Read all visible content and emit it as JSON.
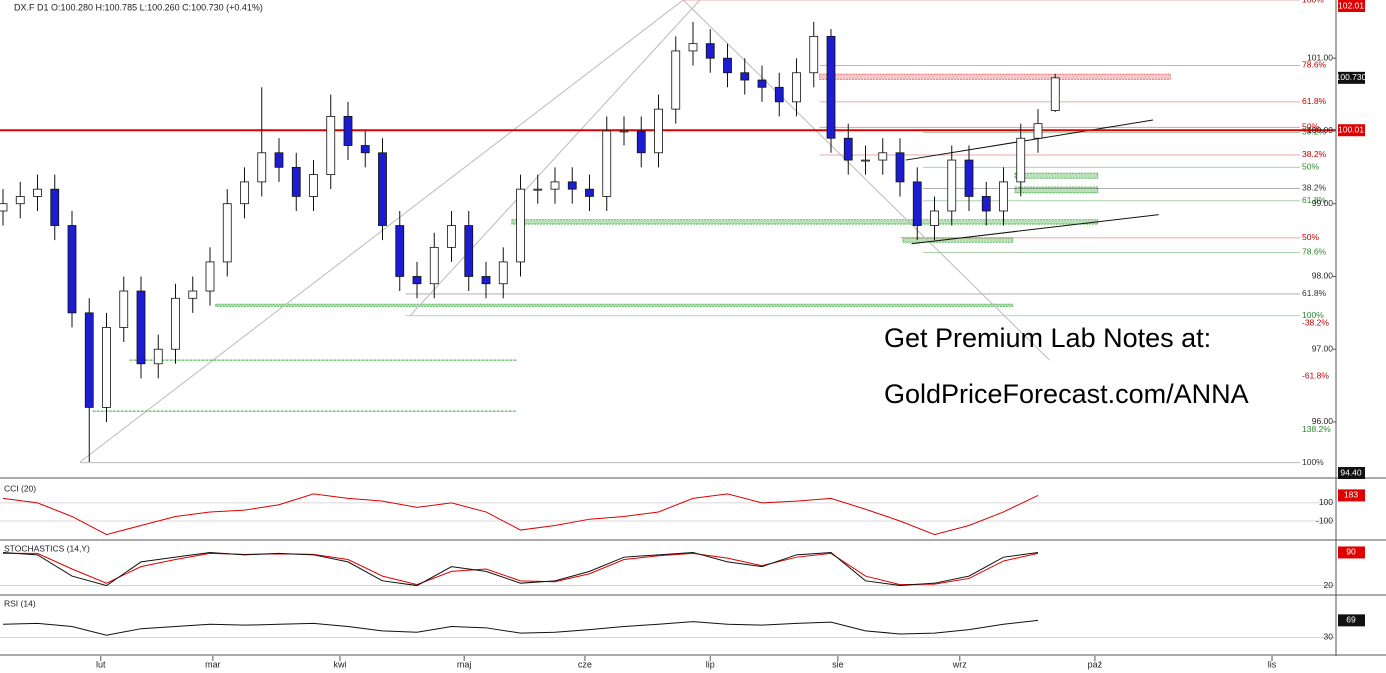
{
  "chart_data": [
    {
      "type": "candlestick",
      "header": "DX.F  D1  O:100.280  H:100.785  L:100.260  C:100.730  (+0.41%)",
      "x": [
        0,
        3,
        6,
        9,
        12,
        15,
        18,
        21,
        24,
        27,
        30,
        33,
        36,
        39,
        42,
        45,
        48,
        51,
        54,
        57,
        60,
        63,
        66,
        69,
        72,
        75,
        78,
        81,
        84,
        87,
        90,
        93,
        96,
        99,
        102,
        105,
        108,
        111,
        114,
        117,
        120,
        123,
        126,
        129,
        132,
        135,
        138,
        141,
        144,
        147,
        150,
        153,
        156,
        159,
        162,
        165,
        168,
        171,
        174,
        177,
        180,
        183
      ],
      "open": [
        98.9,
        99.0,
        99.1,
        99.2,
        98.7,
        97.5,
        96.2,
        97.3,
        97.8,
        96.8,
        97.0,
        97.7,
        97.8,
        98.2,
        99.0,
        99.3,
        99.7,
        99.5,
        99.1,
        99.4,
        100.2,
        99.8,
        99.7,
        98.7,
        98.0,
        97.9,
        98.4,
        98.7,
        98.0,
        97.9,
        98.2,
        99.2,
        99.2,
        99.3,
        99.2,
        99.1,
        100.0,
        100.0,
        99.7,
        100.3,
        101.1,
        101.2,
        101.0,
        100.8,
        100.7,
        100.6,
        100.4,
        100.8,
        101.3,
        99.9,
        99.6,
        99.6,
        99.7,
        99.3,
        98.7,
        98.9,
        99.6,
        99.1,
        98.9,
        99.3,
        99.9,
        100.28
      ],
      "high": [
        99.2,
        99.3,
        99.4,
        99.4,
        98.9,
        97.7,
        97.5,
        98.0,
        98.0,
        97.2,
        97.9,
        98.0,
        98.4,
        99.2,
        99.5,
        100.6,
        99.9,
        99.7,
        99.6,
        100.5,
        100.4,
        100.0,
        99.9,
        98.9,
        98.2,
        98.6,
        98.9,
        98.9,
        98.2,
        98.4,
        99.4,
        99.4,
        99.5,
        99.5,
        99.4,
        100.2,
        100.2,
        100.2,
        100.5,
        101.3,
        101.5,
        101.4,
        101.2,
        101.0,
        100.9,
        100.8,
        101.0,
        101.5,
        101.4,
        100.1,
        99.8,
        99.9,
        99.9,
        99.5,
        99.1,
        99.8,
        99.8,
        99.3,
        99.5,
        100.1,
        100.3,
        100.785
      ],
      "low": [
        98.7,
        98.8,
        98.9,
        98.5,
        97.3,
        95.45,
        96.0,
        97.1,
        96.6,
        96.6,
        96.8,
        97.5,
        97.6,
        98.0,
        98.8,
        99.1,
        99.3,
        98.9,
        98.9,
        99.2,
        99.6,
        99.5,
        98.5,
        97.8,
        97.7,
        97.7,
        98.2,
        97.8,
        97.7,
        97.7,
        98.0,
        99.0,
        99.0,
        99.0,
        98.9,
        98.9,
        99.8,
        99.5,
        99.5,
        100.1,
        100.9,
        100.8,
        100.6,
        100.5,
        100.4,
        100.2,
        100.2,
        100.6,
        99.7,
        99.4,
        99.4,
        99.4,
        99.1,
        98.5,
        98.5,
        98.7,
        98.9,
        98.7,
        98.7,
        99.1,
        99.7,
        100.26
      ],
      "close": [
        99.0,
        99.1,
        99.2,
        98.7,
        97.5,
        96.2,
        97.3,
        97.8,
        96.8,
        97.0,
        97.7,
        97.8,
        98.2,
        99.0,
        99.3,
        99.7,
        99.5,
        99.1,
        99.4,
        100.2,
        99.8,
        99.7,
        98.7,
        98.0,
        97.9,
        98.4,
        98.7,
        98.0,
        97.9,
        98.2,
        99.2,
        99.2,
        99.3,
        99.2,
        99.1,
        100.0,
        100.0,
        99.7,
        100.3,
        101.1,
        101.2,
        101.0,
        100.8,
        100.7,
        100.6,
        100.4,
        100.8,
        101.3,
        99.9,
        99.6,
        99.6,
        99.7,
        99.3,
        98.7,
        98.9,
        99.6,
        99.1,
        98.9,
        99.3,
        99.9,
        100.1,
        100.73
      ],
      "close_label": "100.730",
      "colors": {
        "up": "#ffffff",
        "down": "#1c1cd0",
        "edge": "#111111"
      },
      "xlim": [
        0,
        232
      ],
      "xticks": [
        {
          "value": 17,
          "label": "lut"
        },
        {
          "value": 36.5,
          "label": "mar"
        },
        {
          "value": 58.6,
          "label": "kwi"
        },
        {
          "value": 80.2,
          "label": "maj"
        },
        {
          "value": 101.2,
          "label": "cze"
        },
        {
          "value": 123,
          "label": "lip"
        },
        {
          "value": 145.2,
          "label": "sie"
        },
        {
          "value": 166.4,
          "label": "wrz"
        },
        {
          "value": 189.9,
          "label": "paź"
        },
        {
          "value": 220.7,
          "label": "lis"
        }
      ],
      "ylim": [
        95.23,
        101.8
      ],
      "yticks": [
        {
          "value": 96,
          "label": "96.00"
        },
        {
          "value": 97,
          "label": "97.00"
        },
        {
          "value": 98,
          "label": "98.00"
        },
        {
          "value": 99,
          "label": "99.00"
        },
        {
          "value": 100,
          "label": "100.00"
        },
        {
          "value": 101,
          "label": "101.00"
        }
      ],
      "ref_line": {
        "value": 100.01,
        "color": "#e00000"
      },
      "price_tags": [
        {
          "value": 102.01,
          "color": "#e00000"
        },
        {
          "value": 94.4,
          "label": "94.40",
          "color": "#111111"
        }
      ],
      "fib_levels": [
        {
          "label": "100%",
          "value": 101.8,
          "color": "#c00000",
          "start": 118.3
        },
        {
          "label": "78.6%",
          "value": 100.9,
          "color": "#c00000",
          "start": 142
        },
        {
          "label": "61.8%",
          "value": 100.4,
          "color": "#c00000",
          "start": 142
        },
        {
          "label": "50%",
          "value": 100.05,
          "color": "#c00000",
          "start": 142
        },
        {
          "label": "38.2%",
          "value": 99.98,
          "color": "#2a8a2a",
          "start": 160
        },
        {
          "label": "38.2%",
          "value": 99.67,
          "color": "#c00000",
          "start": 142
        },
        {
          "label": "50%",
          "value": 99.5,
          "color": "#2a8a2a",
          "start": 160
        },
        {
          "label": "38.2%",
          "value": 99.21,
          "color": "#333333",
          "start": 160
        },
        {
          "label": "61.8%",
          "value": 99.04,
          "color": "#2a8a2a",
          "start": 160
        },
        {
          "label": "50%",
          "value": 98.53,
          "color": "#c00000",
          "start": 156
        },
        {
          "label": "78.6%",
          "value": 98.33,
          "color": "#2a8a2a",
          "start": 160
        },
        {
          "label": "61.8%",
          "value": 97.76,
          "color": "#333333",
          "start": 70
        },
        {
          "label": "100%",
          "value": 97.46,
          "color": "#2a8a2a",
          "start": 70
        },
        {
          "label": "-38.2%",
          "value": 97.36,
          "color": "#c00000"
        },
        {
          "label": "-61.8%",
          "value": 96.63,
          "color": "#c00000"
        },
        {
          "label": "138.2%",
          "value": 95.89,
          "color": "#2a8a2a"
        },
        {
          "label": "100%",
          "value": 95.44,
          "color": "#333333",
          "start": 13.4
        }
      ],
      "zones": [
        {
          "x": [
            88.5,
            190.4
          ],
          "y": [
            98.72,
            98.78
          ],
          "color": "#3aa83a"
        },
        {
          "x": [
            176,
            190.4
          ],
          "y": [
            99.35,
            99.42
          ],
          "color": "#3aa83a"
        },
        {
          "x": [
            176,
            190.4
          ],
          "y": [
            99.15,
            99.23
          ],
          "color": "#3aa83a"
        },
        {
          "x": [
            156.5,
            175.6
          ],
          "y": [
            98.47,
            98.53
          ],
          "color": "#3aa83a"
        },
        {
          "x": [
            37,
            175.6
          ],
          "y": [
            97.59,
            97.62
          ],
          "color": "#3aa83a"
        },
        {
          "x": [
            142,
            203
          ],
          "y": [
            100.71,
            100.78
          ],
          "color": "#e06060"
        }
      ],
      "lines": [
        {
          "x": [
            13.4,
            118.3
          ],
          "y": [
            95.45,
            101.8
          ],
          "color": "#bbbbbb"
        },
        {
          "x": [
            70.8,
            121.2
          ],
          "y": [
            97.46,
            101.8
          ],
          "color": "#bbbbbb"
        },
        {
          "x": [
            118.3,
            182
          ],
          "y": [
            101.8,
            96.85
          ],
          "color": "#bbbbbb"
        },
        {
          "x": [
            157,
            200
          ],
          "y": [
            99.6,
            100.15
          ],
          "color": "#111111"
        },
        {
          "x": [
            158,
            201
          ],
          "y": [
            98.45,
            98.85
          ],
          "color": "#111111"
        },
        {
          "x": [
            22,
            89.4
          ],
          "y": [
            96.85,
            96.85
          ],
          "color": "#3aa83a"
        },
        {
          "x": [
            15.6,
            89.4
          ],
          "y": [
            96.15,
            96.15
          ],
          "color": "#3aa83a"
        }
      ],
      "annotations": [
        "Get Premium Lab Notes at:",
        "GoldPriceForecast.com/ANNA"
      ]
    },
    {
      "type": "line",
      "title": "CCI (20)",
      "tag_color": "#e00000",
      "x": [
        0,
        6,
        12,
        18,
        24,
        30,
        36,
        42,
        48,
        54,
        60,
        66,
        72,
        78,
        84,
        90,
        96,
        102,
        108,
        114,
        120,
        126,
        132,
        138,
        144,
        150,
        156,
        162,
        168,
        174,
        180
      ],
      "series": [
        {
          "color": "#e00000",
          "values": [
            150,
            100,
            -50,
            -250,
            -150,
            -50,
            0,
            20,
            80,
            200,
            150,
            120,
            50,
            100,
            0,
            -200,
            -150,
            -80,
            -50,
            0,
            150,
            200,
            100,
            120,
            150,
            30,
            -100,
            -250,
            -150,
            0,
            183
          ]
        }
      ],
      "ylim": [
        -310,
        320
      ],
      "yticks": [
        100,
        -100
      ]
    },
    {
      "type": "line",
      "title": "STOCHASTICS (14,Y)",
      "tag_color": "#e00000",
      "x": [
        0,
        6,
        12,
        18,
        24,
        30,
        36,
        42,
        48,
        54,
        60,
        66,
        72,
        78,
        84,
        90,
        96,
        102,
        108,
        114,
        120,
        126,
        132,
        138,
        144,
        150,
        156,
        162,
        168,
        174,
        180
      ],
      "series": [
        {
          "color": "#e00000",
          "values": [
            88,
            88,
            55,
            25,
            60,
            75,
            88,
            86,
            87,
            86,
            75,
            40,
            22,
            50,
            55,
            30,
            28,
            45,
            75,
            83,
            88,
            78,
            62,
            80,
            88,
            40,
            22,
            23,
            35,
            72,
            88
          ]
        },
        {
          "color": "#111111",
          "values": [
            90,
            85,
            40,
            20,
            70,
            80,
            90,
            85,
            88,
            85,
            70,
            30,
            20,
            60,
            50,
            25,
            30,
            50,
            80,
            85,
            90,
            70,
            60,
            85,
            90,
            30,
            20,
            25,
            40,
            80,
            90
          ]
        }
      ],
      "ylim": [
        0,
        110
      ],
      "yticks": [
        20
      ]
    },
    {
      "type": "line",
      "title": "RSI (14)",
      "tag_color": "#111111",
      "x": [
        0,
        6,
        12,
        18,
        24,
        30,
        36,
        42,
        48,
        54,
        60,
        66,
        72,
        78,
        84,
        90,
        96,
        102,
        108,
        114,
        120,
        126,
        132,
        138,
        144,
        150,
        156,
        162,
        168,
        174,
        180
      ],
      "series": [
        {
          "color": "#111111",
          "values": [
            60,
            62,
            55,
            35,
            50,
            55,
            60,
            58,
            60,
            62,
            55,
            45,
            42,
            55,
            52,
            40,
            42,
            48,
            55,
            60,
            66,
            60,
            58,
            62,
            65,
            45,
            38,
            40,
            48,
            60,
            69
          ]
        }
      ],
      "ylim": [
        -10,
        120
      ],
      "yticks": [
        30
      ]
    }
  ]
}
